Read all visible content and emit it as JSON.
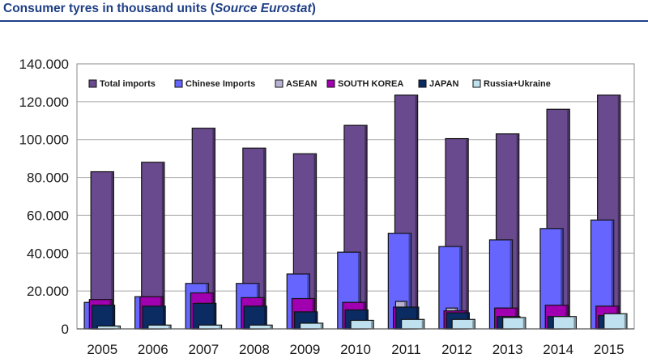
{
  "heading": {
    "main": "Consumer tyres in thousand units (",
    "source": "Source Eurostat",
    "close": ")"
  },
  "chart_data": {
    "type": "bar",
    "title": "",
    "xlabel": "",
    "ylabel": "",
    "ylim": [
      0,
      140000
    ],
    "yticks": [
      {
        "value": 0,
        "label": "0"
      },
      {
        "value": 20000,
        "label": "20.000"
      },
      {
        "value": 40000,
        "label": "40.000"
      },
      {
        "value": 60000,
        "label": "60.000"
      },
      {
        "value": 80000,
        "label": "80.000"
      },
      {
        "value": 100000,
        "label": "100.000"
      },
      {
        "value": 120000,
        "label": "120.000"
      },
      {
        "value": 140000,
        "label": "140.000"
      }
    ],
    "grid": true,
    "legend_position": "top",
    "categories": [
      "2005",
      "2006",
      "2007",
      "2008",
      "2009",
      "2010",
      "2011",
      "2012",
      "2013",
      "2014",
      "2015"
    ],
    "series": [
      {
        "name": "Total imports",
        "color": "#6a4a8e",
        "values": [
          83000,
          88000,
          106000,
          95500,
          92500,
          107500,
          123500,
          100500,
          103000,
          116000,
          123500
        ]
      },
      {
        "name": "Chinese Imports",
        "color": "#6666ff",
        "values": [
          14000,
          17000,
          24000,
          24000,
          29000,
          40500,
          50500,
          43500,
          47000,
          53000,
          57500
        ]
      },
      {
        "name": "ASEAN",
        "color": "#b7b2d2",
        "values": [
          6500,
          7500,
          10000,
          9500,
          10000,
          12000,
          14500,
          11000,
          11000,
          12000,
          11500
        ]
      },
      {
        "name": "SOUTH KOREA",
        "color": "#a000b0",
        "values": [
          15500,
          17000,
          19000,
          16500,
          16000,
          14000,
          11500,
          9500,
          11000,
          12500,
          12000
        ]
      },
      {
        "name": "JAPAN",
        "color": "#0b2b63",
        "values": [
          12500,
          12000,
          13500,
          12000,
          9000,
          10000,
          11500,
          8500,
          6500,
          6500,
          7000
        ]
      },
      {
        "name": "Russia+Ukraine",
        "color": "#bfe0ee",
        "values": [
          1500,
          2000,
          2000,
          2000,
          3000,
          4500,
          5000,
          5000,
          6000,
          6500,
          8000
        ]
      }
    ]
  }
}
